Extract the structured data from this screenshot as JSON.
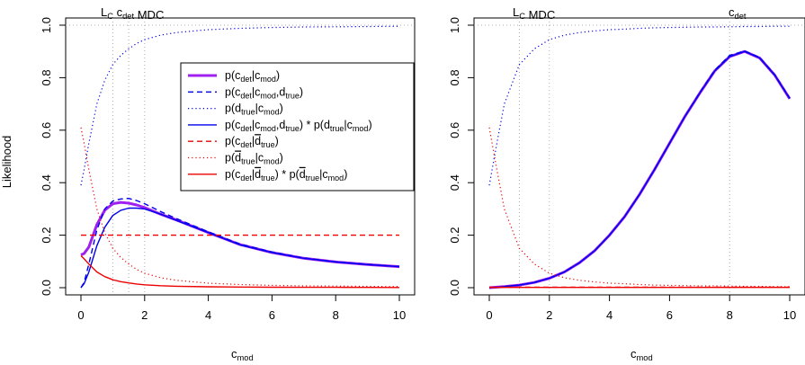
{
  "chart_data": [
    {
      "type": "line",
      "title_parts": [
        [
          "L",
          "C"
        ],
        [
          "c",
          "det"
        ],
        [
          "MDC",
          ""
        ]
      ],
      "xlabel": [
        "c",
        "mod"
      ],
      "ylabel": "Likelihood",
      "xlim": [
        0,
        10
      ],
      "ylim": [
        0,
        1
      ],
      "xticks": [
        0,
        2,
        4,
        6,
        8,
        10
      ],
      "yticks": [
        0.0,
        0.2,
        0.4,
        0.6,
        0.8,
        1.0
      ],
      "xtick_labels": [
        "0",
        "2",
        "4",
        "6",
        "8",
        "10"
      ],
      "ytick_labels": [
        "0.0",
        "0.2",
        "0.4",
        "0.6",
        "0.8",
        "1.0"
      ],
      "reference_lines": {
        "horizontal": [
          1.0
        ],
        "vertical": [
          1,
          1.5,
          2
        ]
      },
      "grid": false,
      "legend_position": "top-right",
      "x": [
        0,
        0.1,
        0.25,
        0.5,
        0.75,
        1,
        1.25,
        1.5,
        1.75,
        2,
        2.5,
        3,
        4,
        5,
        6,
        7,
        8,
        9,
        10
      ],
      "series": [
        {
          "id": "mod",
          "color": "#a020f0",
          "dash": "solid",
          "width": 3,
          "values": [
            0.125,
            0.13,
            0.155,
            0.24,
            0.295,
            0.32,
            0.325,
            0.322,
            0.315,
            0.305,
            0.28,
            0.258,
            0.21,
            0.164,
            0.134,
            0.112,
            0.098,
            0.088,
            0.08
          ]
        },
        {
          "id": "mod_dtrue",
          "color": "#0000ee",
          "dash": "dashed",
          "width": 1.4,
          "values": [
            0.0,
            0.02,
            0.09,
            0.22,
            0.3,
            0.33,
            0.338,
            0.34,
            0.332,
            0.32,
            0.29,
            0.263,
            0.213,
            0.166,
            0.136,
            0.113,
            0.099,
            0.089,
            0.08
          ]
        },
        {
          "id": "dtrue",
          "color": "#0000ee",
          "dash": "dotted",
          "width": 1.2,
          "values": [
            0.39,
            0.45,
            0.55,
            0.7,
            0.79,
            0.85,
            0.885,
            0.91,
            0.93,
            0.945,
            0.962,
            0.972,
            0.983,
            0.988,
            0.991,
            0.993,
            0.994,
            0.995,
            0.996
          ]
        },
        {
          "id": "product_true",
          "color": "#0000ee",
          "dash": "solid",
          "width": 1.4,
          "values": [
            0.0,
            0.015,
            0.06,
            0.16,
            0.23,
            0.275,
            0.295,
            0.303,
            0.303,
            0.3,
            0.28,
            0.256,
            0.21,
            0.163,
            0.134,
            0.112,
            0.098,
            0.088,
            0.08
          ]
        },
        {
          "id": "det_notd",
          "color": "#ee0000",
          "dash": "dashed",
          "width": 1.4,
          "values": [
            0.2,
            0.2,
            0.2,
            0.2,
            0.2,
            0.2,
            0.2,
            0.2,
            0.2,
            0.2,
            0.2,
            0.2,
            0.2,
            0.2,
            0.2,
            0.2,
            0.2,
            0.2,
            0.2
          ]
        },
        {
          "id": "notd",
          "color": "#ee0000",
          "dash": "dotted",
          "width": 1.2,
          "values": [
            0.61,
            0.55,
            0.45,
            0.3,
            0.21,
            0.15,
            0.115,
            0.09,
            0.07,
            0.055,
            0.038,
            0.028,
            0.017,
            0.012,
            0.009,
            0.007,
            0.006,
            0.005,
            0.004
          ]
        },
        {
          "id": "product_notd",
          "color": "#ee0000",
          "dash": "solid",
          "width": 1.4,
          "values": [
            0.122,
            0.11,
            0.09,
            0.06,
            0.042,
            0.03,
            0.023,
            0.018,
            0.014,
            0.011,
            0.0076,
            0.0056,
            0.0034,
            0.0024,
            0.0018,
            0.0014,
            0.0012,
            0.001,
            0.0008
          ]
        }
      ],
      "legend": [
        {
          "series": "mod",
          "parts": [
            [
              "p(c",
              ""
            ],
            [
              "det",
              "sub"
            ],
            [
              "|c",
              ""
            ],
            [
              "mod",
              "sub"
            ],
            [
              ")",
              ""
            ]
          ]
        },
        {
          "series": "mod_dtrue",
          "parts": [
            [
              "p(c",
              ""
            ],
            [
              "det",
              "sub"
            ],
            [
              "|c",
              ""
            ],
            [
              "mod",
              "sub"
            ],
            [
              ",d",
              ""
            ],
            [
              "true",
              "sub"
            ],
            [
              ")",
              ""
            ]
          ]
        },
        {
          "series": "dtrue",
          "parts": [
            [
              "p(d",
              ""
            ],
            [
              "true",
              "sub"
            ],
            [
              "|c",
              ""
            ],
            [
              "mod",
              "sub"
            ],
            [
              ")",
              ""
            ]
          ]
        },
        {
          "series": "product_true",
          "parts": [
            [
              "p(c",
              ""
            ],
            [
              "det",
              "sub"
            ],
            [
              "|c",
              ""
            ],
            [
              "mod",
              "sub"
            ],
            [
              ",d",
              ""
            ],
            [
              "true",
              "sub"
            ],
            [
              ") * p(d",
              ""
            ],
            [
              "true",
              "sub"
            ],
            [
              "|c",
              ""
            ],
            [
              "mod",
              "sub"
            ],
            [
              ")",
              ""
            ]
          ]
        },
        {
          "series": "det_notd",
          "parts": [
            [
              "p(c",
              ""
            ],
            [
              "det",
              "sub"
            ],
            [
              "|",
              ""
            ],
            [
              "d",
              "bar"
            ],
            [
              "true",
              "sub"
            ],
            [
              ")",
              ""
            ]
          ]
        },
        {
          "series": "notd",
          "parts": [
            [
              "p(",
              ""
            ],
            [
              "d",
              "bar"
            ],
            [
              "true",
              "sub"
            ],
            [
              "|c",
              ""
            ],
            [
              "mod",
              "sub"
            ],
            [
              ")",
              ""
            ]
          ]
        },
        {
          "series": "product_notd",
          "parts": [
            [
              "p(c",
              ""
            ],
            [
              "det",
              "sub"
            ],
            [
              "|",
              ""
            ],
            [
              "d",
              "bar"
            ],
            [
              "true",
              "sub"
            ],
            [
              ") * p(",
              ""
            ],
            [
              "d",
              "bar"
            ],
            [
              "true",
              "sub"
            ],
            [
              "|c",
              ""
            ],
            [
              "mod",
              "sub"
            ],
            [
              ")",
              ""
            ]
          ]
        }
      ]
    },
    {
      "type": "line",
      "title_parts": [
        [
          "L",
          "C"
        ],
        [
          "MDC",
          ""
        ]
      ],
      "title_right_parts": [
        [
          "c",
          "det"
        ]
      ],
      "xlabel": [
        "c",
        "mod"
      ],
      "ylabel": "",
      "xlim": [
        0,
        10
      ],
      "ylim": [
        0,
        1
      ],
      "xticks": [
        0,
        2,
        4,
        6,
        8,
        10
      ],
      "yticks": [
        0.0,
        0.2,
        0.4,
        0.6,
        0.8,
        1.0
      ],
      "xtick_labels": [
        "0",
        "2",
        "4",
        "6",
        "8",
        "10"
      ],
      "ytick_labels": [
        "0.0",
        "0.2",
        "0.4",
        "0.6",
        "0.8",
        "1.0"
      ],
      "reference_lines": {
        "horizontal": [
          1.0
        ],
        "vertical": [
          1,
          2,
          8
        ]
      },
      "grid": false,
      "x": [
        0,
        0.25,
        0.5,
        1,
        1.5,
        2,
        2.5,
        3,
        3.5,
        4,
        4.5,
        5,
        5.5,
        6,
        6.5,
        7,
        7.5,
        8,
        8.5,
        9,
        9.5,
        10
      ],
      "series": [
        {
          "id": "mod",
          "color": "#a020f0",
          "dash": "solid",
          "width": 3,
          "values": [
            0.0,
            0.002,
            0.004,
            0.01,
            0.02,
            0.036,
            0.06,
            0.095,
            0.14,
            0.2,
            0.27,
            0.355,
            0.45,
            0.55,
            0.65,
            0.74,
            0.825,
            0.88,
            0.9,
            0.875,
            0.81,
            0.72
          ]
        },
        {
          "id": "mod_dtrue",
          "color": "#0000ee",
          "dash": "dashed",
          "width": 1.4,
          "values": [
            0.0,
            0.002,
            0.004,
            0.01,
            0.02,
            0.036,
            0.06,
            0.095,
            0.14,
            0.2,
            0.27,
            0.355,
            0.45,
            0.55,
            0.65,
            0.742,
            0.828,
            0.885,
            0.902,
            0.877,
            0.812,
            0.722
          ]
        },
        {
          "id": "dtrue",
          "color": "#0000ee",
          "dash": "dotted",
          "width": 1.2,
          "values": [
            0.39,
            0.55,
            0.7,
            0.85,
            0.91,
            0.945,
            0.962,
            0.972,
            0.978,
            0.983,
            0.985,
            0.988,
            0.99,
            0.991,
            0.992,
            0.993,
            0.993,
            0.994,
            0.995,
            0.995,
            0.996,
            0.996
          ]
        },
        {
          "id": "product_true",
          "color": "#0000ee",
          "dash": "solid",
          "width": 1.4,
          "values": [
            0.0,
            0.002,
            0.004,
            0.01,
            0.02,
            0.036,
            0.06,
            0.095,
            0.14,
            0.2,
            0.27,
            0.355,
            0.45,
            0.55,
            0.65,
            0.74,
            0.825,
            0.88,
            0.9,
            0.875,
            0.81,
            0.72
          ]
        },
        {
          "id": "det_notd",
          "color": "#ee0000",
          "dash": "dashed",
          "width": 1.4,
          "values": [
            0.002,
            0.002,
            0.002,
            0.002,
            0.002,
            0.002,
            0.002,
            0.002,
            0.002,
            0.002,
            0.002,
            0.002,
            0.002,
            0.002,
            0.002,
            0.002,
            0.002,
            0.002,
            0.002,
            0.002,
            0.002,
            0.002
          ]
        },
        {
          "id": "notd",
          "color": "#ee0000",
          "dash": "dotted",
          "width": 1.2,
          "values": [
            0.61,
            0.45,
            0.3,
            0.15,
            0.09,
            0.055,
            0.038,
            0.028,
            0.022,
            0.017,
            0.015,
            0.012,
            0.01,
            0.009,
            0.008,
            0.007,
            0.007,
            0.006,
            0.005,
            0.005,
            0.004,
            0.004
          ]
        },
        {
          "id": "product_notd",
          "color": "#ee0000",
          "dash": "solid",
          "width": 1.4,
          "values": [
            0.001,
            0.001,
            0.001,
            0.001,
            0.001,
            0.001,
            0.001,
            0.001,
            0.001,
            0.001,
            0.001,
            0.001,
            0.001,
            0.001,
            0.001,
            0.001,
            0.001,
            0.001,
            0.001,
            0.001,
            0.001,
            0.001
          ]
        }
      ]
    }
  ]
}
